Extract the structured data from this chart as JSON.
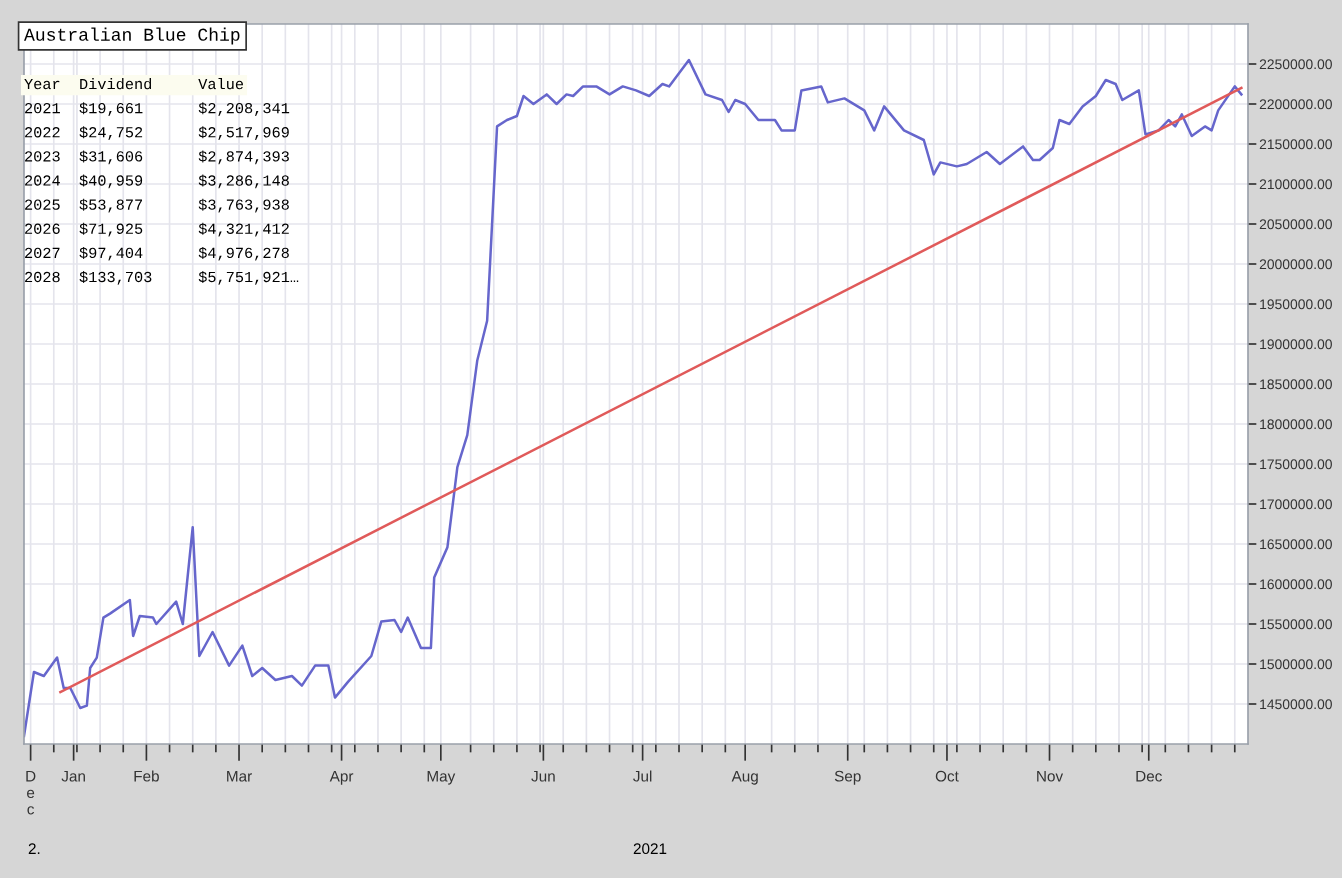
{
  "chart_data": {
    "type": "line",
    "title": "Australian Blue Chip",
    "xlabel": "2021",
    "annotations": [
      "Year  Dividend     Value",
      "2021  $19,661      $2,208,341",
      "2022  $24,752      $2,517,969",
      "2023  $31,606      $2,874,393",
      "2024  $40,959      $3,286,148",
      "2025  $53,877      $3,763,938",
      "2026  $71,925      $4,321,412",
      "2027  $97,404      $4,976,278",
      "2028  $133,703     $5,751,921…",
      "2."
    ],
    "series": [
      {
        "color": "#6666cc",
        "x": [
          "2020-12-26",
          "2020-12-29",
          "2021-01-01",
          "2021-01-05",
          "2021-01-07",
          "2021-01-09",
          "2021-01-12",
          "2021-01-14",
          "2021-01-15",
          "2021-01-17",
          "2021-01-19",
          "2021-01-21",
          "2021-01-27",
          "2021-01-28",
          "2021-01-30",
          "2021-02-03",
          "2021-02-04",
          "2021-02-10",
          "2021-02-12",
          "2021-02-15",
          "2021-02-17",
          "2021-02-21",
          "2021-02-26",
          "2021-03-02",
          "2021-03-05",
          "2021-03-08",
          "2021-03-12",
          "2021-03-17",
          "2021-03-20",
          "2021-03-24",
          "2021-03-28",
          "2021-03-30",
          "2021-04-03",
          "2021-04-10",
          "2021-04-13",
          "2021-04-17",
          "2021-04-19",
          "2021-04-21",
          "2021-04-25",
          "2021-04-28",
          "2021-04-29",
          "2021-05-03",
          "2021-05-06",
          "2021-05-09",
          "2021-05-12",
          "2021-05-15",
          "2021-05-18",
          "2021-05-21",
          "2021-05-24",
          "2021-05-26",
          "2021-05-29",
          "2021-06-02",
          "2021-06-05",
          "2021-06-08",
          "2021-06-10",
          "2021-06-13",
          "2021-06-17",
          "2021-06-21",
          "2021-06-25",
          "2021-06-29",
          "2021-07-03",
          "2021-07-07",
          "2021-07-09",
          "2021-07-15",
          "2021-07-20",
          "2021-07-25",
          "2021-07-27",
          "2021-07-29",
          "2021-08-01",
          "2021-08-05",
          "2021-08-10",
          "2021-08-12",
          "2021-08-16",
          "2021-08-18",
          "2021-08-24",
          "2021-08-26",
          "2021-08-31",
          "2021-09-06",
          "2021-09-09",
          "2021-09-12",
          "2021-09-18",
          "2021-09-24",
          "2021-09-27",
          "2021-09-29",
          "2021-10-04",
          "2021-10-07",
          "2021-10-13",
          "2021-10-17",
          "2021-10-24",
          "2021-10-27",
          "2021-10-29",
          "2021-11-02",
          "2021-11-04",
          "2021-11-07",
          "2021-11-11",
          "2021-11-15",
          "2021-11-18",
          "2021-11-21",
          "2021-11-23",
          "2021-11-28",
          "2021-11-30",
          "2021-12-04",
          "2021-12-07",
          "2021-12-09",
          "2021-12-11",
          "2021-12-14",
          "2021-12-18",
          "2021-12-20",
          "2021-12-22",
          "2021-12-27",
          "2021-12-29"
        ],
        "values": [
          1410000,
          1490000,
          1485000,
          1508000,
          1470000,
          1470000,
          1445000,
          1448000,
          1495000,
          1508000,
          1558000,
          1563000,
          1580000,
          1535000,
          1560000,
          1558000,
          1550000,
          1578000,
          1550000,
          1671000,
          1510000,
          1540000,
          1498000,
          1523000,
          1485000,
          1495000,
          1480000,
          1485000,
          1473000,
          1498000,
          1498000,
          1458000,
          1478000,
          1510000,
          1553000,
          1555000,
          1540000,
          1558000,
          1520000,
          1520000,
          1608000,
          1646000,
          1746000,
          1786000,
          1879000,
          1929000,
          2172000,
          2180000,
          2185000,
          2210000,
          2200000,
          2212000,
          2200000,
          2212000,
          2210000,
          2222000,
          2222000,
          2212000,
          2222000,
          2217000,
          2210000,
          2225000,
          2222000,
          2255000,
          2212000,
          2205000,
          2190000,
          2205000,
          2200000,
          2180000,
          2180000,
          2167000,
          2167000,
          2217000,
          2222000,
          2202000,
          2207000,
          2192000,
          2167000,
          2197000,
          2167000,
          2155000,
          2112000,
          2127000,
          2122000,
          2125000,
          2140000,
          2125000,
          2147000,
          2130000,
          2130000,
          2145000,
          2180000,
          2175000,
          2197000,
          2210000,
          2230000,
          2225000,
          2205000,
          2217000,
          2162000,
          2167000,
          2180000,
          2172000,
          2187000,
          2160000,
          2172000,
          2167000,
          2192000,
          2222000,
          2212000
        ]
      },
      {
        "type": "line",
        "color": "#e05a5a",
        "x": [
          "2021-01-06",
          "2021-12-29"
        ],
        "values": [
          1465000,
          2220000
        ]
      }
    ],
    "xlim": [
      "2020-12-26",
      "2021-12-31"
    ],
    "xticks": [
      {
        "value": "2020-12-28",
        "label": "D\ne\nc"
      },
      {
        "value": "2021-01-10",
        "label": "Jan"
      },
      {
        "value": "2021-01-04",
        "label": null
      },
      {
        "value": "2021-01-11",
        "label": null
      },
      {
        "value": "2021-01-18",
        "label": null
      },
      {
        "value": "2021-01-25",
        "label": null
      },
      {
        "value": "2021-02-01",
        "label": "Feb"
      },
      {
        "value": "2021-02-08",
        "label": null
      },
      {
        "value": "2021-02-15",
        "label": null
      },
      {
        "value": "2021-02-22",
        "label": null
      },
      {
        "value": "2021-03-01",
        "label": "Mar"
      },
      {
        "value": "2021-03-08",
        "label": null
      },
      {
        "value": "2021-03-15",
        "label": null
      },
      {
        "value": "2021-03-22",
        "label": null
      },
      {
        "value": "2021-03-29",
        "label": null
      },
      {
        "value": "2021-04-01",
        "label": "Apr"
      },
      {
        "value": "2021-04-05",
        "label": null
      },
      {
        "value": "2021-04-12",
        "label": null
      },
      {
        "value": "2021-04-19",
        "label": null
      },
      {
        "value": "2021-04-26",
        "label": null
      },
      {
        "value": "2021-05-01",
        "label": "May"
      },
      {
        "value": "2021-05-10",
        "label": null
      },
      {
        "value": "2021-05-17",
        "label": null
      },
      {
        "value": "2021-05-24",
        "label": null
      },
      {
        "value": "2021-05-31",
        "label": null
      },
      {
        "value": "2021-06-01",
        "label": "Jun"
      },
      {
        "value": "2021-06-07",
        "label": null
      },
      {
        "value": "2021-06-14",
        "label": null
      },
      {
        "value": "2021-06-21",
        "label": null
      },
      {
        "value": "2021-06-28",
        "label": null
      },
      {
        "value": "2021-07-01",
        "label": "Jul"
      },
      {
        "value": "2021-07-05",
        "label": null
      },
      {
        "value": "2021-07-12",
        "label": null
      },
      {
        "value": "2021-07-19",
        "label": null
      },
      {
        "value": "2021-07-26",
        "label": null
      },
      {
        "value": "2021-08-01",
        "label": "Aug"
      },
      {
        "value": "2021-08-09",
        "label": null
      },
      {
        "value": "2021-08-16",
        "label": null
      },
      {
        "value": "2021-08-23",
        "label": null
      },
      {
        "value": "2021-09-01",
        "label": "Sep"
      },
      {
        "value": "2021-09-06",
        "label": null
      },
      {
        "value": "2021-09-13",
        "label": null
      },
      {
        "value": "2021-09-20",
        "label": null
      },
      {
        "value": "2021-09-27",
        "label": null
      },
      {
        "value": "2021-10-01",
        "label": "Oct"
      },
      {
        "value": "2021-10-04",
        "label": null
      },
      {
        "value": "2021-10-11",
        "label": null
      },
      {
        "value": "2021-10-18",
        "label": null
      },
      {
        "value": "2021-10-25",
        "label": null
      },
      {
        "value": "2021-11-01",
        "label": "Nov"
      },
      {
        "value": "2021-11-08",
        "label": null
      },
      {
        "value": "2021-11-15",
        "label": null
      },
      {
        "value": "2021-11-22",
        "label": null
      },
      {
        "value": "2021-11-29",
        "label": null
      },
      {
        "value": "2021-12-01",
        "label": "Dec"
      },
      {
        "value": "2021-12-06",
        "label": null
      },
      {
        "value": "2021-12-13",
        "label": null
      },
      {
        "value": "2021-12-20",
        "label": null
      },
      {
        "value": "2021-12-27",
        "label": null
      }
    ],
    "ylim": [
      1400000,
      2300000
    ],
    "yticks": [
      {
        "value": 1450000,
        "label": "1450000.00"
      },
      {
        "value": 1500000,
        "label": "1500000.00"
      },
      {
        "value": 1550000,
        "label": "1550000.00"
      },
      {
        "value": 1600000,
        "label": "1600000.00"
      },
      {
        "value": 1650000,
        "label": "1650000.00"
      },
      {
        "value": 1700000,
        "label": "1700000.00"
      },
      {
        "value": 1750000,
        "label": "1750000.00"
      },
      {
        "value": 1800000,
        "label": "1800000.00"
      },
      {
        "value": 1850000,
        "label": "1850000.00"
      },
      {
        "value": 1900000,
        "label": "1900000.00"
      },
      {
        "value": 1950000,
        "label": "1950000.00"
      },
      {
        "value": 2000000,
        "label": "2000000.00"
      },
      {
        "value": 2050000,
        "label": "2050000.00"
      },
      {
        "value": 2100000,
        "label": "2100000.00"
      },
      {
        "value": 2150000,
        "label": "2150000.00"
      },
      {
        "value": 2200000,
        "label": "2200000.00"
      },
      {
        "value": 2250000,
        "label": "2250000.00"
      }
    ],
    "grid": true,
    "legend": false,
    "marker": "none",
    "line_style": "solid"
  }
}
